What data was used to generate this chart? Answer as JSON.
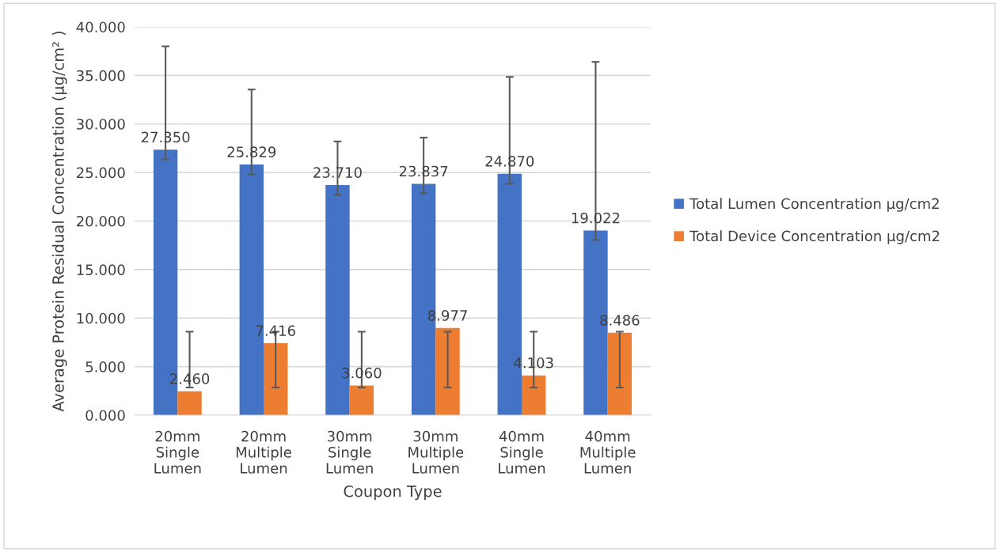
{
  "chart_data": {
    "type": "bar",
    "xlabel": "Coupon Type",
    "ylabel": "Average Protein Residual Concentration (µg/cm² )",
    "categories": [
      "20mm\nSingle\nLumen",
      "20mm\nMultiple\nLumen",
      "30mm\nSingle\nLumen",
      "30mm\nMultiple\nLumen",
      "40mm\nSingle\nLumen",
      "40mm\nMultiple\nLumen"
    ],
    "series": [
      {
        "name": "Total Lumen Concentration µg/cm2",
        "color": "#4472c4",
        "values": [
          27.35,
          25.829,
          23.71,
          23.837,
          24.87,
          19.022
        ],
        "value_labels": [
          "27.350",
          "25.829",
          "23.710",
          "23.837",
          "24.870",
          "19.022"
        ],
        "errors": [
          [
            26.35,
            38.0
          ],
          [
            24.8,
            33.55
          ],
          [
            22.7,
            28.2
          ],
          [
            22.85,
            28.6
          ],
          [
            23.85,
            34.85
          ],
          [
            18.05,
            36.4
          ]
        ]
      },
      {
        "name": "Total Device Concentration µg/cm2",
        "color": "#ed7d31",
        "values": [
          2.46,
          7.416,
          3.06,
          8.977,
          4.103,
          8.486
        ],
        "value_labels": [
          "2.460",
          "7.416",
          "3.060",
          "8.977",
          "4.103",
          "8.486"
        ],
        "errors": [
          [
            2.85,
            8.6
          ],
          [
            2.85,
            8.6
          ],
          [
            2.85,
            8.6
          ],
          [
            2.85,
            8.6
          ],
          [
            2.85,
            8.6
          ],
          [
            2.85,
            8.6
          ]
        ]
      }
    ],
    "ylim": [
      0,
      40
    ],
    "yticks": [
      {
        "value": 0,
        "label": "0.000"
      },
      {
        "value": 5,
        "label": "5.000"
      },
      {
        "value": 10,
        "label": "10.000"
      },
      {
        "value": 15,
        "label": "15.000"
      },
      {
        "value": 20,
        "label": "20.000"
      },
      {
        "value": 25,
        "label": "25.000"
      },
      {
        "value": 30,
        "label": "30.000"
      },
      {
        "value": 35,
        "label": "35.000"
      },
      {
        "value": 40,
        "label": "40.000"
      }
    ],
    "grid": "y",
    "legend": "right"
  }
}
